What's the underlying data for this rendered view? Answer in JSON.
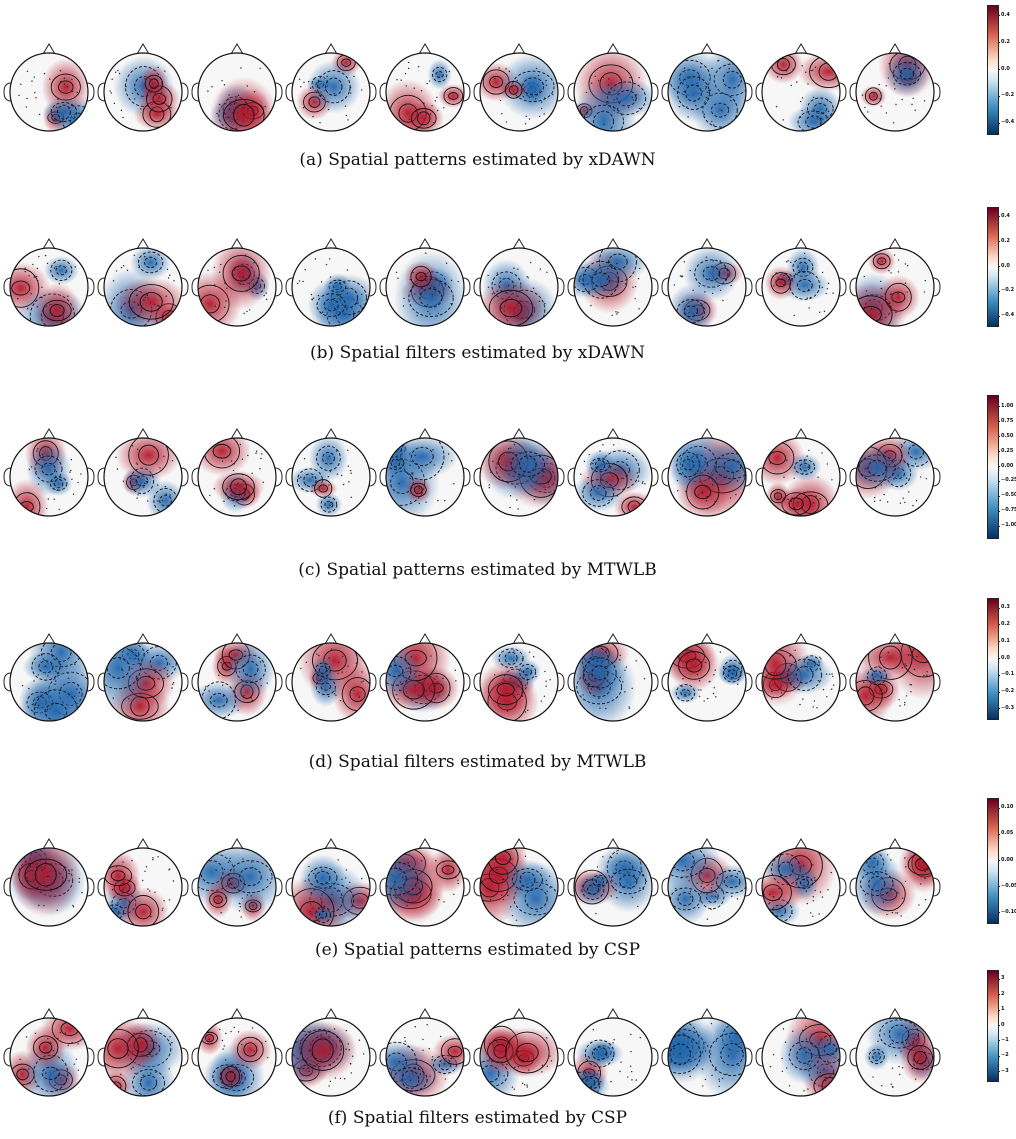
{
  "panels": [
    {
      "caption": "(a) Spatial patterns estimated by xDAWN",
      "colorbar_ticks": [
        "0.4",
        "0.2",
        "0.0",
        "−0.2",
        "−0.4"
      ],
      "colorbar_range": [
        -0.5,
        0.5
      ]
    },
    {
      "caption": "(b) Spatial filters estimated by xDAWN",
      "colorbar_ticks": [
        "0.4",
        "0.2",
        "0.0",
        "−0.2",
        "−0.4"
      ],
      "colorbar_range": [
        -0.5,
        0.5
      ]
    },
    {
      "caption": "(c) Spatial patterns estimated by MTWLB",
      "colorbar_ticks": [
        "1.00",
        "0.75",
        "0.50",
        "0.25",
        "0.00",
        "−0.25",
        "−0.50",
        "−0.75",
        "−1.00"
      ],
      "colorbar_range": [
        -1.0,
        1.0
      ]
    },
    {
      "caption": "(d) Spatial filters estimated by MTWLB",
      "colorbar_ticks": [
        "0.3",
        "0.2",
        "0.1",
        "0.0",
        "−0.1",
        "−0.2",
        "−0.3"
      ],
      "colorbar_range": [
        -0.33,
        0.33
      ]
    },
    {
      "caption": "(e) Spatial patterns estimated by CSP",
      "colorbar_ticks": [
        "0.10",
        "0.05",
        "0.00",
        "−0.05",
        "−0.10"
      ],
      "colorbar_range": [
        -0.12,
        0.12
      ]
    },
    {
      "caption": "(f) Spatial filters estimated by CSP",
      "colorbar_ticks": [
        "3",
        "2",
        "1",
        "0",
        "−1",
        "−2",
        "−3"
      ],
      "colorbar_range": [
        -3.3,
        3.3
      ]
    }
  ],
  "colors": {
    "positive": "#b2182b",
    "negative": "#2166ac",
    "neutral": "#f7f7f7"
  },
  "maps_per_panel": 10
}
